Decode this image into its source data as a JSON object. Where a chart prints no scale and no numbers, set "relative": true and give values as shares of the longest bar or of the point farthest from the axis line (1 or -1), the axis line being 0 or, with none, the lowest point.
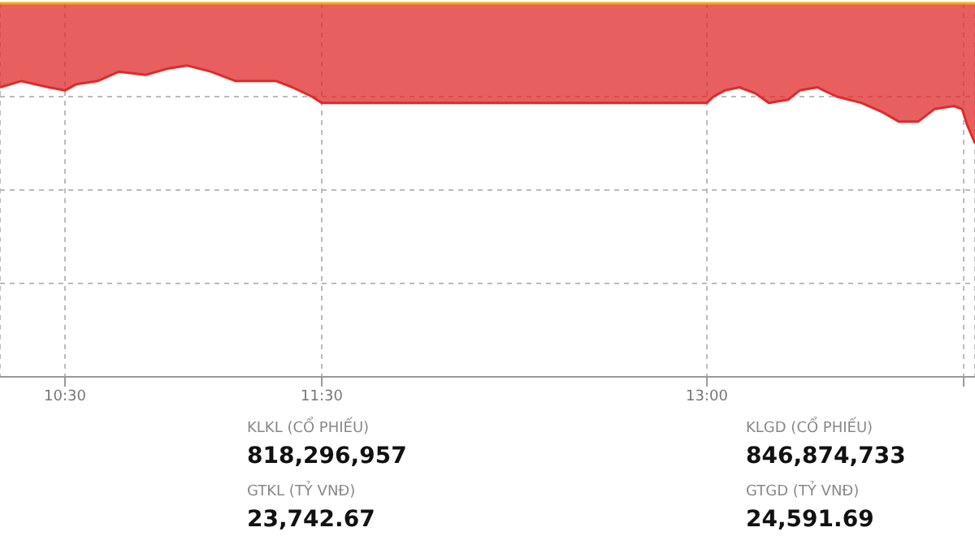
{
  "chart_data": {
    "type": "line",
    "relative": true,
    "x": [
      10.247,
      10.329,
      10.437,
      10.5,
      10.544,
      10.627,
      10.709,
      10.816,
      10.899,
      10.975,
      11.07,
      11.165,
      11.259,
      11.323,
      11.386,
      11.462,
      11.5,
      13.0,
      13.025,
      13.07,
      13.127,
      13.19,
      13.241,
      13.316,
      13.361,
      13.43,
      13.506,
      13.601,
      13.684,
      13.747,
      13.823,
      13.886,
      13.962,
      13.994,
      14.013,
      14.044
    ],
    "series": [
      {
        "color": "#e02a2a",
        "values": [
          0.93,
          0.95,
          0.93,
          0.92,
          0.94,
          0.95,
          0.98,
          0.97,
          0.99,
          1,
          0.98,
          0.95,
          0.95,
          0.95,
          0.93,
          0.9,
          0.88,
          0.88,
          0.9,
          0.92,
          0.93,
          0.91,
          0.88,
          0.89,
          0.92,
          0.93,
          0.9,
          0.88,
          0.85,
          0.82,
          0.82,
          0.86,
          0.87,
          0.86,
          0.81,
          0.75
        ],
        "lower": [
          0.93,
          0.95,
          0.93,
          0.92,
          0.94,
          0.95,
          0.98,
          0.97,
          0.99,
          1,
          0.98,
          0.95,
          0.95,
          0.95,
          0.93,
          0.9,
          0.88,
          0.88,
          0.9,
          0.92,
          0.93,
          0.91,
          0.88,
          0.89,
          0.92,
          0.93,
          0.9,
          0.88,
          0.85,
          0.82,
          0.82,
          0.86,
          0.87,
          0.86,
          0.81,
          0.75
        ],
        "upper": [
          1.2,
          1.2,
          1.2,
          1.2,
          1.2,
          1.2,
          1.2,
          1.2,
          1.2,
          1.2,
          1.2,
          1.2,
          1.2,
          1.2,
          1.2,
          1.2,
          1.2,
          1.2,
          1.2,
          1.2,
          1.2,
          1.2,
          1.2,
          1.2,
          1.2,
          1.2,
          1.2,
          1.2,
          1.2,
          1.2,
          1.2,
          1.2,
          1.2,
          1.2,
          1.2,
          1.2
        ]
      }
    ],
    "xlim": [
      10.247,
      14.044
    ],
    "xticks": [
      {
        "value": 10.5,
        "label": "10:30"
      },
      {
        "value": 11.5,
        "label": "11:30"
      },
      {
        "value": 13,
        "label": "13:00"
      },
      {
        "value": 14,
        "label": null
      }
    ],
    "ref_lines": [
      {
        "axis": "y",
        "value": 1.2,
        "color": "#f0b000"
      }
    ],
    "grid": true,
    "marker": "none",
    "line_style": "solid",
    "annotations": [
      "KLKL (CỔ PHIẾU)",
      "818,296,957",
      "GTKL (TỶ VNĐ)",
      "23,742.67",
      "KLGD (CỔ PHIẾU)",
      "846,874,733",
      "GTGD (TỶ VNĐ)",
      "24,591.69"
    ]
  }
}
